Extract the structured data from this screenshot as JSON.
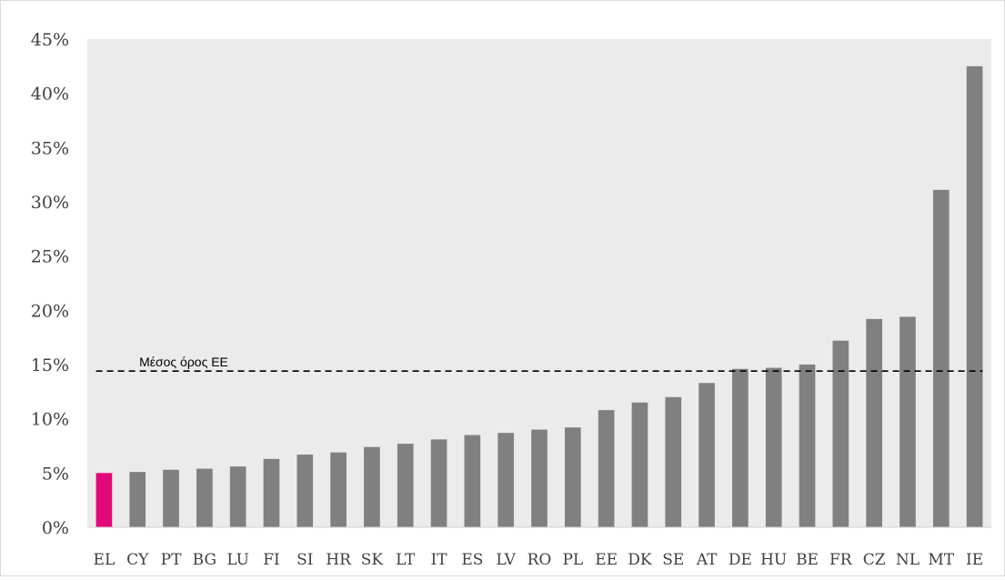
{
  "chart_data": {
    "type": "bar",
    "title": "",
    "xlabel": "",
    "ylabel": "",
    "categories": [
      "EL",
      "CY",
      "PT",
      "BG",
      "LU",
      "FI",
      "SI",
      "HR",
      "SK",
      "LT",
      "IT",
      "ES",
      "LV",
      "RO",
      "PL",
      "EE",
      "DK",
      "SE",
      "AT",
      "DE",
      "HU",
      "BE",
      "FR",
      "CZ",
      "NL",
      "MT",
      "IE"
    ],
    "values": [
      5.0,
      5.1,
      5.3,
      5.4,
      5.6,
      6.3,
      6.7,
      6.9,
      7.4,
      7.7,
      8.1,
      8.5,
      8.7,
      9.0,
      9.2,
      10.8,
      11.5,
      12.0,
      13.3,
      14.6,
      14.7,
      15.0,
      17.2,
      19.2,
      19.4,
      31.1,
      42.5
    ],
    "highlight_category": "EL",
    "highlight_color": "#E2087A",
    "bar_color": "#808080",
    "plot_background": "#EBEBEB",
    "ylim": [
      0,
      45
    ],
    "yticks": [
      0,
      5,
      10,
      15,
      20,
      25,
      30,
      35,
      40,
      45
    ],
    "ytick_format": "percent",
    "grid": false,
    "legend": "none",
    "reference_line": {
      "label": "Μέσος όρος ΕΕ",
      "value": 14.4,
      "style": "dashed",
      "color": "#000000"
    }
  }
}
